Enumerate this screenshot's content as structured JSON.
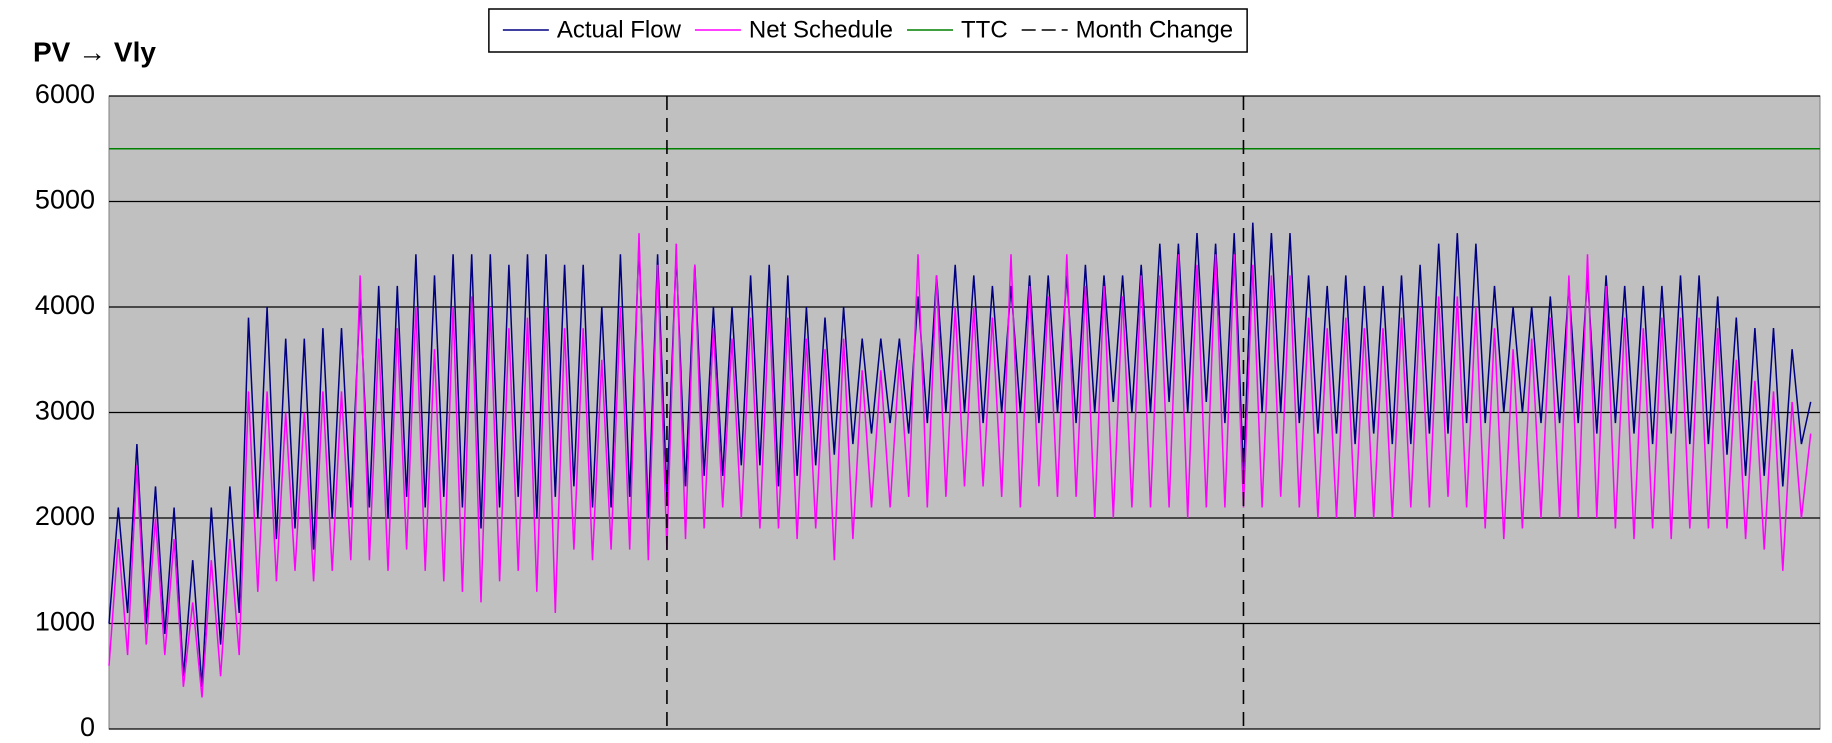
{
  "chart_data": {
    "type": "line",
    "title": "PV → Vly",
    "xlim": [
      0,
      92
    ],
    "ylim": [
      0,
      6000
    ],
    "yticks": [
      0,
      1000,
      2000,
      3000,
      4000,
      5000,
      6000
    ],
    "grid": true,
    "x": [
      0,
      0.5,
      1,
      1.5,
      2,
      2.5,
      3,
      3.5,
      4,
      4.5,
      5,
      5.5,
      6,
      6.5,
      7,
      7.5,
      8,
      8.5,
      9,
      9.5,
      10,
      10.5,
      11,
      11.5,
      12,
      12.5,
      13,
      13.5,
      14,
      14.5,
      15,
      15.5,
      16,
      16.5,
      17,
      17.5,
      18,
      18.5,
      19,
      19.5,
      20,
      20.5,
      21,
      21.5,
      22,
      22.5,
      23,
      23.5,
      24,
      24.5,
      25,
      25.5,
      26,
      26.5,
      27,
      27.5,
      28,
      28.5,
      29,
      29.5,
      30,
      30.5,
      31,
      31.5,
      32,
      32.5,
      33,
      33.5,
      34,
      34.5,
      35,
      35.5,
      36,
      36.5,
      37,
      37.5,
      38,
      38.5,
      39,
      39.5,
      40,
      40.5,
      41,
      41.5,
      42,
      42.5,
      43,
      43.5,
      44,
      44.5,
      45,
      45.5,
      46,
      46.5,
      47,
      47.5,
      48,
      48.5,
      49,
      49.5,
      50,
      50.5,
      51,
      51.5,
      52,
      52.5,
      53,
      53.5,
      54,
      54.5,
      55,
      55.5,
      56,
      56.5,
      57,
      57.5,
      58,
      58.5,
      59,
      59.5,
      60,
      60.5,
      61,
      61.5,
      62,
      62.5,
      63,
      63.5,
      64,
      64.5,
      65,
      65.5,
      66,
      66.5,
      67,
      67.5,
      68,
      68.5,
      69,
      69.5,
      70,
      70.5,
      71,
      71.5,
      72,
      72.5,
      73,
      73.5,
      74,
      74.5,
      75,
      75.5,
      76,
      76.5,
      77,
      77.5,
      78,
      78.5,
      79,
      79.5,
      80,
      80.5,
      81,
      81.5,
      82,
      82.5,
      83,
      83.5,
      84,
      84.5,
      85,
      85.5,
      86,
      86.5,
      87,
      87.5,
      88,
      88.5,
      89,
      89.5,
      90,
      90.5,
      91,
      91.5
    ],
    "series": [
      {
        "name": "Actual Flow",
        "color": "#000080",
        "values": [
          1000,
          2100,
          1100,
          2700,
          1000,
          2300,
          900,
          2100,
          500,
          1600,
          400,
          2100,
          800,
          2300,
          1100,
          3900,
          2000,
          4000,
          1800,
          3700,
          1900,
          3700,
          1700,
          3800,
          2000,
          3800,
          2100,
          4100,
          2100,
          4200,
          2000,
          4200,
          2200,
          4500,
          2100,
          4300,
          2200,
          4500,
          2100,
          4500,
          1900,
          4500,
          2100,
          4400,
          2200,
          4500,
          2000,
          4500,
          2200,
          4400,
          2300,
          4400,
          2100,
          4000,
          2100,
          4500,
          2200,
          4600,
          2000,
          4500,
          2200,
          4500,
          2300,
          4400,
          2400,
          4000,
          2400,
          4000,
          2500,
          4300,
          2500,
          4400,
          2300,
          4300,
          2400,
          4000,
          2500,
          3900,
          2600,
          4000,
          2700,
          3700,
          2800,
          3700,
          2900,
          3700,
          2800,
          4100,
          2900,
          4300,
          3000,
          4400,
          3000,
          4300,
          2900,
          4200,
          3000,
          4200,
          3000,
          4300,
          2900,
          4300,
          3000,
          4300,
          2900,
          4400,
          3000,
          4300,
          3100,
          4300,
          3000,
          4400,
          3000,
          4600,
          3100,
          4600,
          3000,
          4700,
          3100,
          4600,
          2900,
          4700,
          2400,
          4800,
          3000,
          4700,
          3000,
          4700,
          2900,
          4300,
          2800,
          4200,
          2800,
          4300,
          2700,
          4200,
          2800,
          4200,
          2700,
          4300,
          2700,
          4400,
          2800,
          4600,
          2800,
          4700,
          2900,
          4600,
          2900,
          4200,
          3000,
          4000,
          3000,
          4000,
          2900,
          4100,
          2900,
          4200,
          2900,
          4300,
          2800,
          4300,
          2900,
          4200,
          2800,
          4200,
          2700,
          4200,
          2800,
          4300,
          2700,
          4300,
          2700,
          4100,
          2600,
          3900,
          2400,
          3800,
          2400,
          3800,
          2300,
          3600,
          2700,
          3100
        ]
      },
      {
        "name": "Net Schedule",
        "color": "#ff00ff",
        "values": [
          600,
          1800,
          700,
          2500,
          800,
          2000,
          700,
          1800,
          400,
          1200,
          300,
          1600,
          500,
          1800,
          700,
          3200,
          1300,
          3200,
          1400,
          3000,
          1500,
          3000,
          1400,
          3200,
          1500,
          3200,
          1600,
          4300,
          1600,
          3700,
          1500,
          3800,
          1700,
          4000,
          1500,
          3600,
          1400,
          4000,
          1300,
          4100,
          1200,
          4000,
          1400,
          3800,
          1500,
          3900,
          1300,
          4000,
          1100,
          3800,
          1700,
          3800,
          1600,
          3500,
          1700,
          4000,
          1700,
          4700,
          1600,
          4400,
          1700,
          4600,
          1800,
          4400,
          1900,
          3800,
          2100,
          3700,
          2000,
          3900,
          1900,
          4000,
          1900,
          3900,
          1800,
          3700,
          1900,
          3600,
          1600,
          3700,
          1800,
          3400,
          2100,
          3400,
          2100,
          3500,
          2200,
          4500,
          2100,
          4300,
          2200,
          4000,
          2300,
          4000,
          2300,
          3900,
          2200,
          4500,
          2100,
          4200,
          2300,
          4100,
          2200,
          4500,
          2200,
          4200,
          2000,
          4200,
          2000,
          4100,
          2100,
          4300,
          2100,
          4300,
          2100,
          4500,
          2000,
          4400,
          2100,
          4500,
          2100,
          4500,
          2100,
          4400,
          2100,
          4300,
          2200,
          4300,
          2100,
          3900,
          2000,
          3800,
          2000,
          3900,
          2000,
          3800,
          2000,
          3800,
          2000,
          3900,
          2100,
          4000,
          2100,
          4100,
          2200,
          4100,
          2100,
          4000,
          1900,
          3800,
          1800,
          3600,
          1900,
          3700,
          2000,
          3900,
          2000,
          4300,
          2000,
          4500,
          2000,
          4200,
          1900,
          3900,
          1800,
          3800,
          1900,
          3900,
          1800,
          3900,
          1900,
          3900,
          1900,
          3800,
          1900,
          3500,
          1800,
          3300,
          1700,
          3200,
          1500,
          3100,
          2000,
          2800
        ]
      },
      {
        "name": "TTC",
        "color": "#008000",
        "x": [
          0,
          92
        ],
        "values": [
          5500,
          5500
        ]
      },
      {
        "name": "Month Change",
        "color": "#000000",
        "dash": true,
        "x": [
          30,
          61
        ]
      }
    ]
  }
}
